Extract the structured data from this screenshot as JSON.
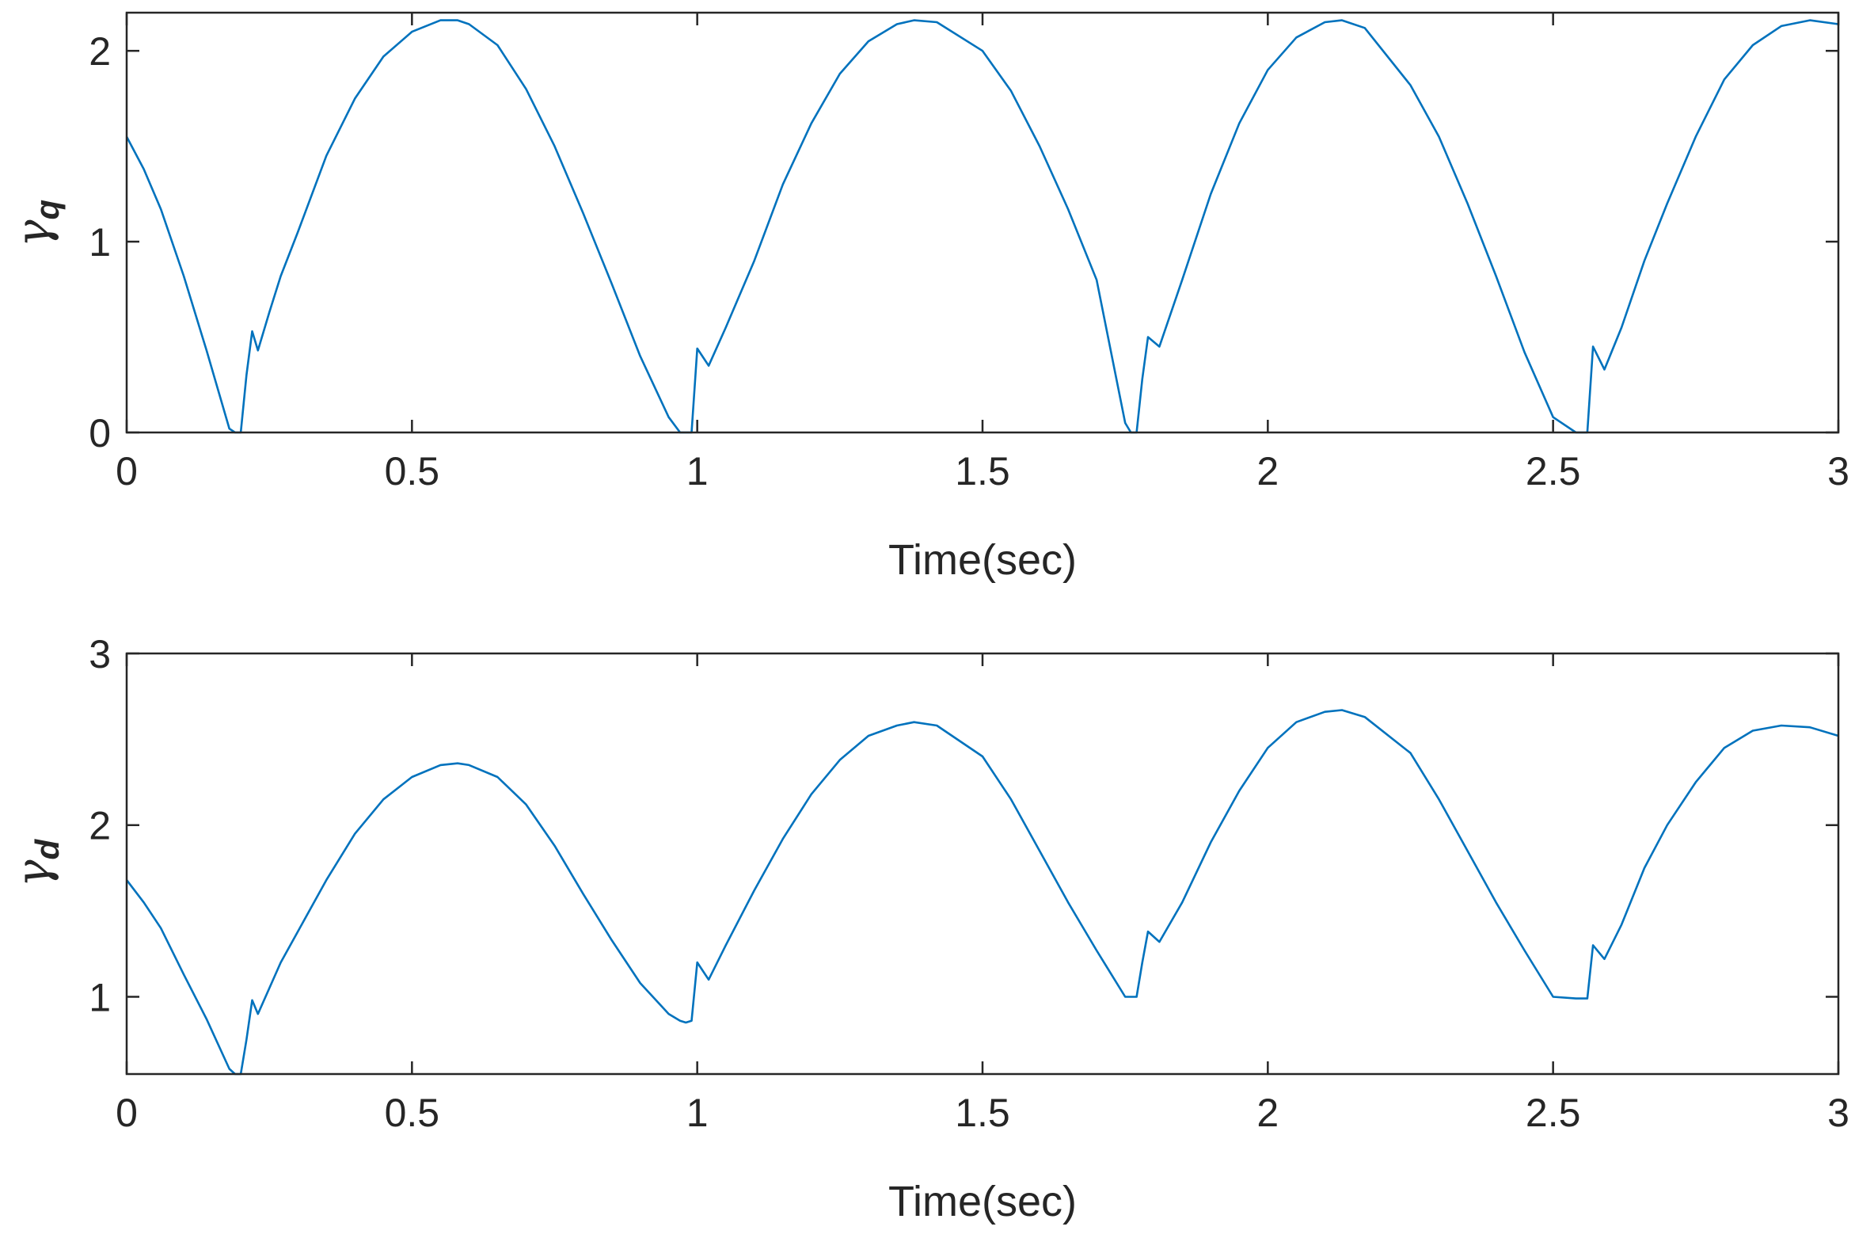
{
  "colors": {
    "series": "#0072BD",
    "axes": "#262626"
  },
  "chart_data": [
    {
      "type": "line",
      "title": "",
      "xlabel": "Time(sec)",
      "ylabel": "γ",
      "ylabel_sub": "q",
      "xlim": [
        0,
        3
      ],
      "ylim": [
        0,
        2.2
      ],
      "xticks": [
        0,
        0.5,
        1,
        1.5,
        2,
        2.5,
        3
      ],
      "xtick_labels": [
        "0",
        "0.5",
        "1",
        "1.5",
        "2",
        "2.5",
        "3"
      ],
      "yticks": [
        0,
        1,
        2
      ],
      "ytick_labels": [
        "0",
        "1",
        "2"
      ],
      "grid": false,
      "series": [
        {
          "values_x": [
            0,
            0.03,
            0.06,
            0.1,
            0.14,
            0.18,
            0.19,
            0.2,
            0.21,
            0.22,
            0.23,
            0.25,
            0.27,
            0.3,
            0.35,
            0.4,
            0.45,
            0.5,
            0.55,
            0.58,
            0.6,
            0.65,
            0.7,
            0.75,
            0.8,
            0.85,
            0.9,
            0.95,
            0.97,
            0.98,
            0.99,
            1.0,
            1.02,
            1.05,
            1.1,
            1.15,
            1.2,
            1.25,
            1.3,
            1.35,
            1.38,
            1.42,
            1.5,
            1.55,
            1.6,
            1.65,
            1.7,
            1.75,
            1.76,
            1.77,
            1.78,
            1.79,
            1.81,
            1.85,
            1.9,
            1.95,
            2.0,
            2.05,
            2.1,
            2.13,
            2.17,
            2.25,
            2.3,
            2.35,
            2.4,
            2.45,
            2.5,
            2.54,
            2.55,
            2.56,
            2.57,
            2.59,
            2.62,
            2.66,
            2.7,
            2.75,
            2.8,
            2.85,
            2.9,
            2.95,
            3.0
          ],
          "values_y": [
            1.55,
            1.38,
            1.17,
            0.82,
            0.43,
            0.02,
            0.0,
            0.0,
            0.3,
            0.53,
            0.43,
            0.63,
            0.82,
            1.05,
            1.45,
            1.75,
            1.97,
            2.1,
            2.16,
            2.16,
            2.14,
            2.03,
            1.8,
            1.5,
            1.15,
            0.78,
            0.4,
            0.08,
            0.0,
            0.0,
            0.0,
            0.44,
            0.35,
            0.55,
            0.9,
            1.3,
            1.62,
            1.88,
            2.05,
            2.14,
            2.16,
            2.15,
            2.0,
            1.79,
            1.5,
            1.17,
            0.8,
            0.05,
            0.0,
            0.0,
            0.28,
            0.5,
            0.45,
            0.8,
            1.25,
            1.62,
            1.9,
            2.07,
            2.15,
            2.16,
            2.12,
            1.82,
            1.55,
            1.2,
            0.82,
            0.42,
            0.08,
            0.0,
            0.0,
            0.0,
            0.45,
            0.33,
            0.55,
            0.9,
            1.2,
            1.55,
            1.85,
            2.03,
            2.13,
            2.16,
            2.14
          ]
        }
      ]
    },
    {
      "type": "line",
      "title": "",
      "xlabel": "Time(sec)",
      "ylabel": "γ",
      "ylabel_sub": "d",
      "xlim": [
        0,
        3
      ],
      "ylim": [
        0.55,
        3
      ],
      "xticks": [
        0,
        0.5,
        1,
        1.5,
        2,
        2.5,
        3
      ],
      "xtick_labels": [
        "0",
        "0.5",
        "1",
        "1.5",
        "2",
        "2.5",
        "3"
      ],
      "yticks": [
        1,
        2,
        3
      ],
      "ytick_labels": [
        "1",
        "2",
        "3"
      ],
      "grid": false,
      "series": [
        {
          "values_x": [
            0,
            0.03,
            0.06,
            0.1,
            0.14,
            0.18,
            0.19,
            0.2,
            0.21,
            0.22,
            0.23,
            0.25,
            0.27,
            0.3,
            0.35,
            0.4,
            0.45,
            0.5,
            0.55,
            0.58,
            0.6,
            0.65,
            0.7,
            0.75,
            0.8,
            0.85,
            0.9,
            0.95,
            0.97,
            0.98,
            0.99,
            1.0,
            1.02,
            1.05,
            1.1,
            1.15,
            1.2,
            1.25,
            1.3,
            1.35,
            1.38,
            1.42,
            1.5,
            1.55,
            1.6,
            1.65,
            1.7,
            1.75,
            1.76,
            1.77,
            1.78,
            1.79,
            1.81,
            1.85,
            1.9,
            1.95,
            2.0,
            2.05,
            2.1,
            2.13,
            2.17,
            2.25,
            2.3,
            2.35,
            2.4,
            2.45,
            2.5,
            2.54,
            2.55,
            2.56,
            2.57,
            2.59,
            2.62,
            2.66,
            2.7,
            2.75,
            2.8,
            2.85,
            2.9,
            2.95,
            3.0
          ],
          "values_y": [
            1.68,
            1.55,
            1.4,
            1.13,
            0.87,
            0.58,
            0.55,
            0.55,
            0.75,
            0.98,
            0.9,
            1.05,
            1.2,
            1.38,
            1.68,
            1.95,
            2.15,
            2.28,
            2.35,
            2.36,
            2.35,
            2.28,
            2.12,
            1.88,
            1.6,
            1.33,
            1.08,
            0.9,
            0.86,
            0.85,
            0.86,
            1.2,
            1.1,
            1.3,
            1.62,
            1.92,
            2.18,
            2.38,
            2.52,
            2.58,
            2.6,
            2.58,
            2.4,
            2.15,
            1.85,
            1.55,
            1.27,
            1.0,
            1.0,
            1.0,
            1.2,
            1.38,
            1.32,
            1.55,
            1.9,
            2.2,
            2.45,
            2.6,
            2.66,
            2.67,
            2.63,
            2.42,
            2.15,
            1.85,
            1.55,
            1.27,
            1.0,
            0.99,
            0.99,
            0.99,
            1.3,
            1.22,
            1.42,
            1.75,
            2.0,
            2.25,
            2.45,
            2.55,
            2.58,
            2.57,
            2.52
          ]
        }
      ]
    }
  ]
}
